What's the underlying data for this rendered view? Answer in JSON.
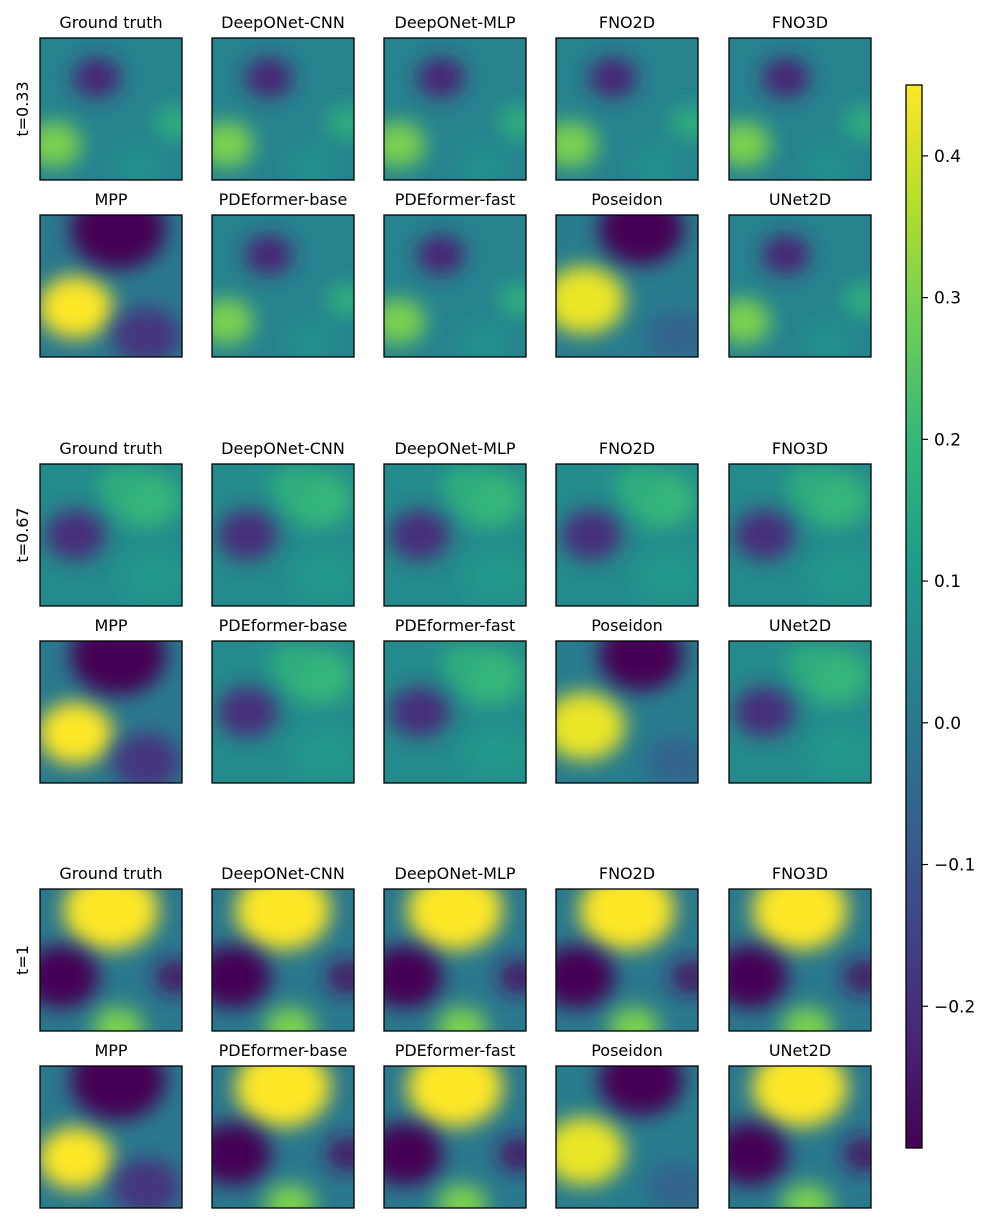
{
  "chart_data": {
    "type": "heatmap",
    "colormap": "viridis",
    "model_names_top_row": [
      "Ground truth",
      "DeepONet-CNN",
      "DeepONet-MLP",
      "FNO2D",
      "FNO3D"
    ],
    "model_names_bottom_row": [
      "MPP",
      "PDEformer-base",
      "PDEformer-fast",
      "Poseidon",
      "UNet2D"
    ],
    "groups": [
      {
        "label": "t=0.33"
      },
      {
        "label": "t=0.67"
      },
      {
        "label": "t=1"
      }
    ],
    "colorbar": {
      "vmin": -0.3,
      "vmax": 0.45,
      "ticks": [
        -0.2,
        -0.1,
        0.0,
        0.1,
        0.2,
        0.3,
        0.4
      ],
      "tick_labels": [
        "−0.2",
        "−0.1",
        "0.0",
        "0.1",
        "0.2",
        "0.3",
        "0.4"
      ]
    },
    "colors": [
      "#440154",
      "#482878",
      "#3e4989",
      "#31688e",
      "#26828e",
      "#1f9e89",
      "#35b779",
      "#6ece58",
      "#b5de2b",
      "#fde725"
    ]
  }
}
